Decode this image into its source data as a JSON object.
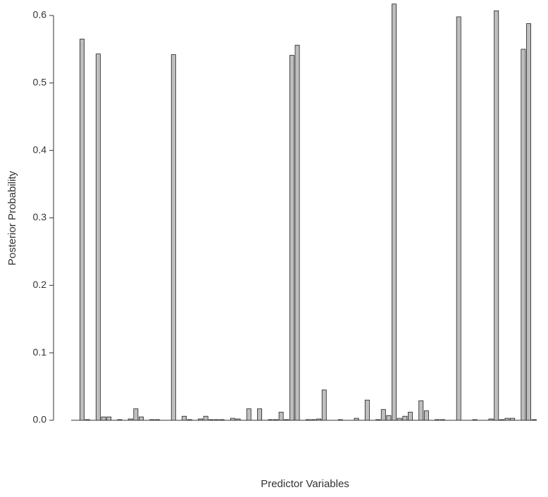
{
  "chart_data": {
    "type": "bar",
    "x_label": "Predictor Variables",
    "y_label": "Posterior Probability",
    "categories": [
      null,
      null,
      null,
      null,
      null,
      null,
      null,
      null,
      null,
      null,
      null,
      null,
      null,
      null,
      null,
      null,
      null,
      null,
      null,
      null,
      null,
      null,
      null,
      null,
      null,
      null,
      null,
      null,
      null,
      null,
      null,
      null,
      null,
      null,
      null,
      null,
      null,
      null,
      null,
      null,
      null,
      null,
      null,
      null,
      null,
      null,
      null,
      null,
      null,
      null,
      null,
      null,
      null,
      null,
      null,
      null,
      null,
      null,
      null,
      null,
      null,
      null,
      null,
      null,
      null,
      null,
      null,
      null,
      null,
      null,
      null,
      null,
      null,
      null,
      null,
      null,
      null,
      null,
      null,
      null,
      null,
      null,
      null,
      null,
      null,
      null
    ],
    "values": [
      0,
      0.565,
      0.001,
      0,
      0.543,
      0.005,
      0.005,
      0,
      0.001,
      0,
      0.002,
      0.017,
      0.005,
      0,
      0.001,
      0.001,
      0,
      0,
      0.542,
      0,
      0.006,
      0.001,
      0,
      0.002,
      0.006,
      0.001,
      0.001,
      0.001,
      0,
      0.003,
      0.002,
      0,
      0.017,
      0,
      0.017,
      0,
      0.001,
      0.001,
      0.012,
      0.001,
      0.541,
      0.556,
      0,
      0.001,
      0.001,
      0.002,
      0.045,
      0,
      0,
      0.001,
      0,
      0,
      0.003,
      0,
      0.03,
      0,
      0.001,
      0.016,
      0.007,
      0.617,
      0.003,
      0.006,
      0.012,
      0,
      0.029,
      0.014,
      0,
      0.001,
      0.001,
      0,
      0,
      0.598,
      0,
      0,
      0.001,
      0,
      0,
      0.002,
      0.607,
      0.001,
      0.003,
      0.003,
      0,
      0.55,
      0.588,
      0.001
    ],
    "color": "#bebebe",
    "ylim": [
      0,
      0.6
    ],
    "yticks": [
      {
        "value": 0,
        "label": "0.0"
      },
      {
        "value": 0.1,
        "label": "0.1"
      },
      {
        "value": 0.2,
        "label": "0.2"
      },
      {
        "value": 0.3,
        "label": "0.3"
      },
      {
        "value": 0.4,
        "label": "0.4"
      },
      {
        "value": 0.5,
        "label": "0.5"
      },
      {
        "value": 0.6,
        "label": "0.6"
      }
    ]
  }
}
